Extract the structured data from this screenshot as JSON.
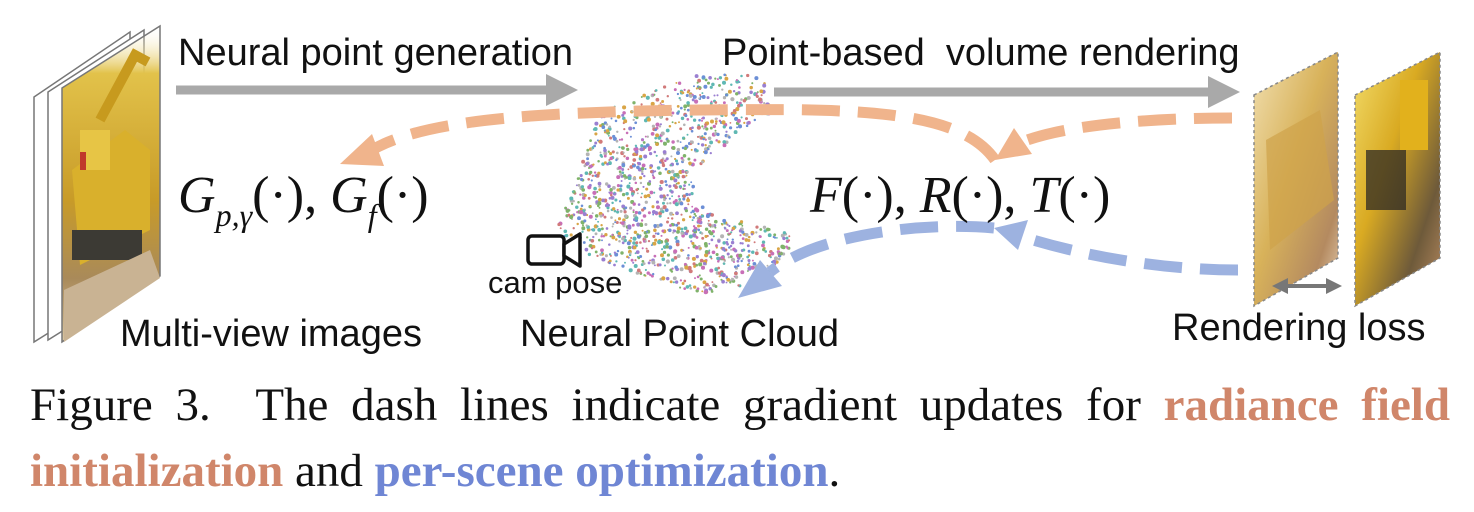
{
  "diagram": {
    "labels": {
      "neural_point_generation": "Neural point generation",
      "point_based_volume_rendering": "Point-based  volume rendering",
      "multi_view_images": "Multi-view images",
      "neural_point_cloud": "Neural Point Cloud",
      "cam_pose": "cam pose",
      "rendering_loss": "Rendering loss"
    },
    "math": {
      "generator": "G_{p,γ}(·), G_f(·)",
      "renderer": "F(·), R(·), T(·)"
    },
    "colors": {
      "solid_arrow": "#a9a9a9",
      "radiance_init": "#f0b48c",
      "per_scene_opt": "#9db2e0"
    }
  },
  "caption": {
    "prefix": "Figure 3.  The dash lines indicate gradient updates for ",
    "radiance_field": "radiance field initialization",
    "middle": " and ",
    "per_scene": "per-scene optimization",
    "suffix": ".",
    "radiance_color": "#d0866a",
    "per_scene_color": "#6f86d4"
  }
}
